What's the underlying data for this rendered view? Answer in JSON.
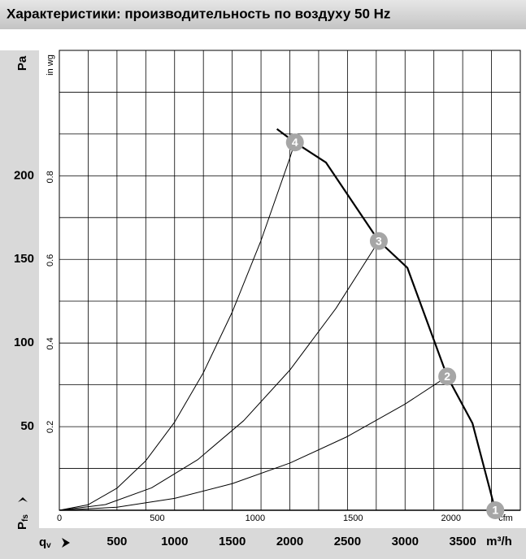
{
  "chart_data": {
    "type": "line",
    "title": "Характеристики: производительность по воздуху 50 Hz",
    "y_axis_label": "Pa",
    "y2_axis_label": "in wg",
    "x_axis_label": "m³/h",
    "x2_axis_label": "cfm",
    "y_quantity": "P",
    "y_quantity_sub": "fs",
    "x_quantity": "q",
    "x_quantity_sub": "v",
    "xlim": [
      0,
      4000
    ],
    "xticks": [
      500,
      1000,
      1500,
      2000,
      2500,
      3000,
      3500
    ],
    "x2lim": [
      0,
      2354
    ],
    "x2ticks": [
      0,
      500,
      1000,
      1500,
      2000
    ],
    "ylim": [
      0,
      275
    ],
    "yticks": [
      50,
      100,
      150,
      200
    ],
    "y2lim": [
      0,
      1.104
    ],
    "y2ticks": [
      0.2,
      0.4,
      0.6,
      0.8
    ],
    "xgrid": [
      250,
      500,
      750,
      1000,
      1250,
      1500,
      1750,
      2000,
      2250,
      2500,
      2750,
      3000,
      3250,
      3500,
      3750
    ],
    "ygrid": [
      25,
      50,
      75,
      100,
      125,
      150,
      175,
      200,
      225,
      250
    ],
    "series": [
      {
        "color": "#000000",
        "width": 2.2,
        "x": [
          1888,
          2044,
          2313,
          2772,
          3020,
          3366,
          3585,
          3783
        ],
        "values": [
          228,
          220,
          208,
          161,
          145,
          80,
          52,
          0
        ]
      },
      {
        "color": "#000000",
        "width": 1,
        "x": [
          0,
          250,
          500,
          750,
          1000,
          1250,
          1500,
          1750,
          2000,
          2044
        ],
        "values": [
          0,
          3.3,
          13.2,
          29.6,
          52.7,
          82.3,
          118.5,
          161.3,
          210.6,
          220
        ]
      },
      {
        "color": "#000000",
        "width": 1,
        "x": [
          0,
          400,
          800,
          1200,
          1600,
          2000,
          2400,
          2772
        ],
        "values": [
          0,
          3.4,
          13.4,
          30.2,
          53.6,
          83.8,
          120.7,
          161
        ]
      },
      {
        "color": "#000000",
        "width": 1,
        "x": [
          0,
          500,
          1000,
          1500,
          2000,
          2500,
          3000,
          3366
        ],
        "values": [
          0,
          1.8,
          7.1,
          15.9,
          28.2,
          44.1,
          63.5,
          80
        ]
      }
    ],
    "points": [
      {
        "label": "1",
        "x": 3783,
        "y": 0
      },
      {
        "label": "2",
        "x": 3366,
        "y": 80
      },
      {
        "label": "3",
        "x": 2772,
        "y": 161
      },
      {
        "label": "4",
        "x": 2044,
        "y": 220
      }
    ],
    "point_color": "#a6a6a6"
  }
}
